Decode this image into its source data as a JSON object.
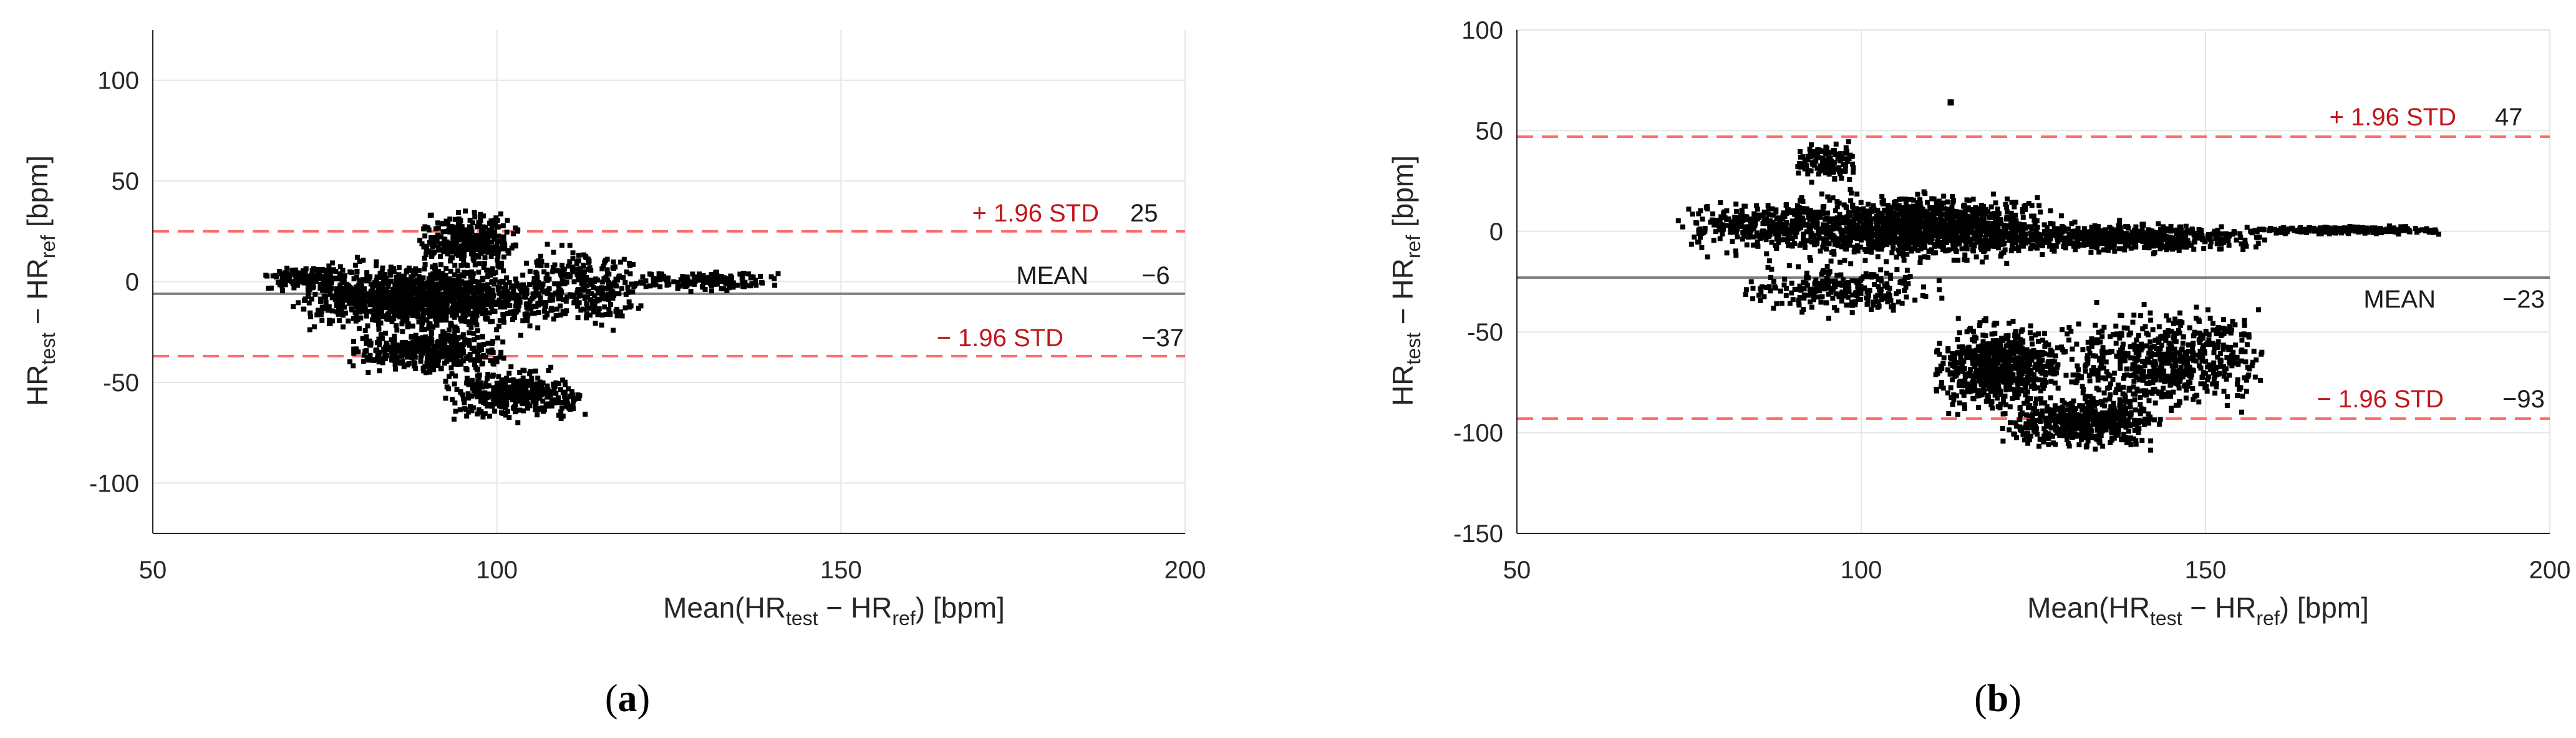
{
  "colors": {
    "limit_line": "#ff6b6b",
    "limit_text": "#c0161b",
    "mean_line": "#808080",
    "points": "#000000",
    "grid": "#e6e6e6",
    "axis": "#262626"
  },
  "chart_data": [
    {
      "type": "scatter",
      "panel_label": "a",
      "xlabel": {
        "prefix": "Mean(HR",
        "s1": "test",
        "mid": " − HR",
        "s2": "ref",
        "suffix": ") [bpm]"
      },
      "ylabel": {
        "prefix": "HR",
        "s1": "test",
        "mid": " − HR",
        "s2": "ref",
        "suffix": " [bpm]"
      },
      "xlim": [
        50,
        200
      ],
      "ylim": [
        -125,
        125
      ],
      "xticks": [
        50,
        100,
        150,
        200
      ],
      "yticks": [
        -100,
        -50,
        0,
        50,
        100
      ],
      "grid": true,
      "reference_lines": [
        {
          "label": "+ 1.96 STD",
          "value": 25,
          "value_text": "25",
          "style": "dashed",
          "color": "#ff6b6b"
        },
        {
          "label": "MEAN",
          "value": -6,
          "value_text": "−6",
          "style": "solid",
          "color": "#808080"
        },
        {
          "label": "− 1.96 STD",
          "value": -37,
          "value_text": "−37",
          "style": "dashed",
          "color": "#ff6b6b"
        }
      ],
      "clusters": [
        {
          "x": [
            66,
            78
          ],
          "y": [
            -6,
            10
          ],
          "n": 120
        },
        {
          "x": [
            70,
            110
          ],
          "y": [
            -30,
            15
          ],
          "n": 1300
        },
        {
          "x": [
            78,
            102
          ],
          "y": [
            -48,
            -22
          ],
          "n": 420
        },
        {
          "x": [
            92,
            113
          ],
          "y": [
            -72,
            -40
          ],
          "n": 380
        },
        {
          "x": [
            88,
            104
          ],
          "y": [
            5,
            38
          ],
          "n": 320
        },
        {
          "x": [
            104,
            122
          ],
          "y": [
            -28,
            22
          ],
          "n": 280
        },
        {
          "x": [
            118,
            142
          ],
          "y": [
            -6,
            6
          ],
          "n": 160
        }
      ]
    },
    {
      "type": "scatter",
      "panel_label": "b",
      "xlabel": {
        "prefix": "Mean(HR",
        "s1": "test",
        "mid": " − HR",
        "s2": "ref",
        "suffix": ") [bpm]"
      },
      "ylabel": {
        "prefix": "HR",
        "s1": "test",
        "mid": " − HR",
        "s2": "ref",
        "suffix": " [bpm]"
      },
      "xlim": [
        50,
        200
      ],
      "ylim": [
        -150,
        100
      ],
      "xticks": [
        50,
        100,
        150,
        200
      ],
      "yticks": [
        -150,
        -100,
        -50,
        0,
        50,
        100
      ],
      "grid": true,
      "reference_lines": [
        {
          "label": "+ 1.96 STD",
          "value": 47,
          "value_text": "47",
          "style": "dashed",
          "color": "#ff6b6b"
        },
        {
          "label": "MEAN",
          "value": -23,
          "value_text": "−23",
          "style": "solid",
          "color": "#808080"
        },
        {
          "label": "− 1.96 STD",
          "value": -93,
          "value_text": "−93",
          "style": "dashed",
          "color": "#ff6b6b"
        }
      ],
      "clusters": [
        {
          "x": [
            73,
            95
          ],
          "y": [
            -15,
            20
          ],
          "n": 260
        },
        {
          "x": [
            85,
            130
          ],
          "y": [
            -18,
            22
          ],
          "n": 1400
        },
        {
          "x": [
            115,
            160
          ],
          "y": [
            -12,
            6
          ],
          "n": 600
        },
        {
          "x": [
            155,
            186
          ],
          "y": [
            -2,
            3
          ],
          "n": 240
        },
        {
          "x": [
            90,
            100
          ],
          "y": [
            20,
            48
          ],
          "n": 120
        },
        {
          "x": [
            82,
            112
          ],
          "y": [
            -45,
            -12
          ],
          "n": 260
        },
        {
          "x": [
            110,
            130
          ],
          "y": [
            -95,
            -40
          ],
          "n": 700
        },
        {
          "x": [
            120,
            145
          ],
          "y": [
            -112,
            -78
          ],
          "n": 500
        },
        {
          "x": [
            128,
            160
          ],
          "y": [
            -95,
            -32
          ],
          "n": 650
        }
      ],
      "outliers": [
        {
          "x": 113,
          "y": 64
        }
      ]
    }
  ]
}
